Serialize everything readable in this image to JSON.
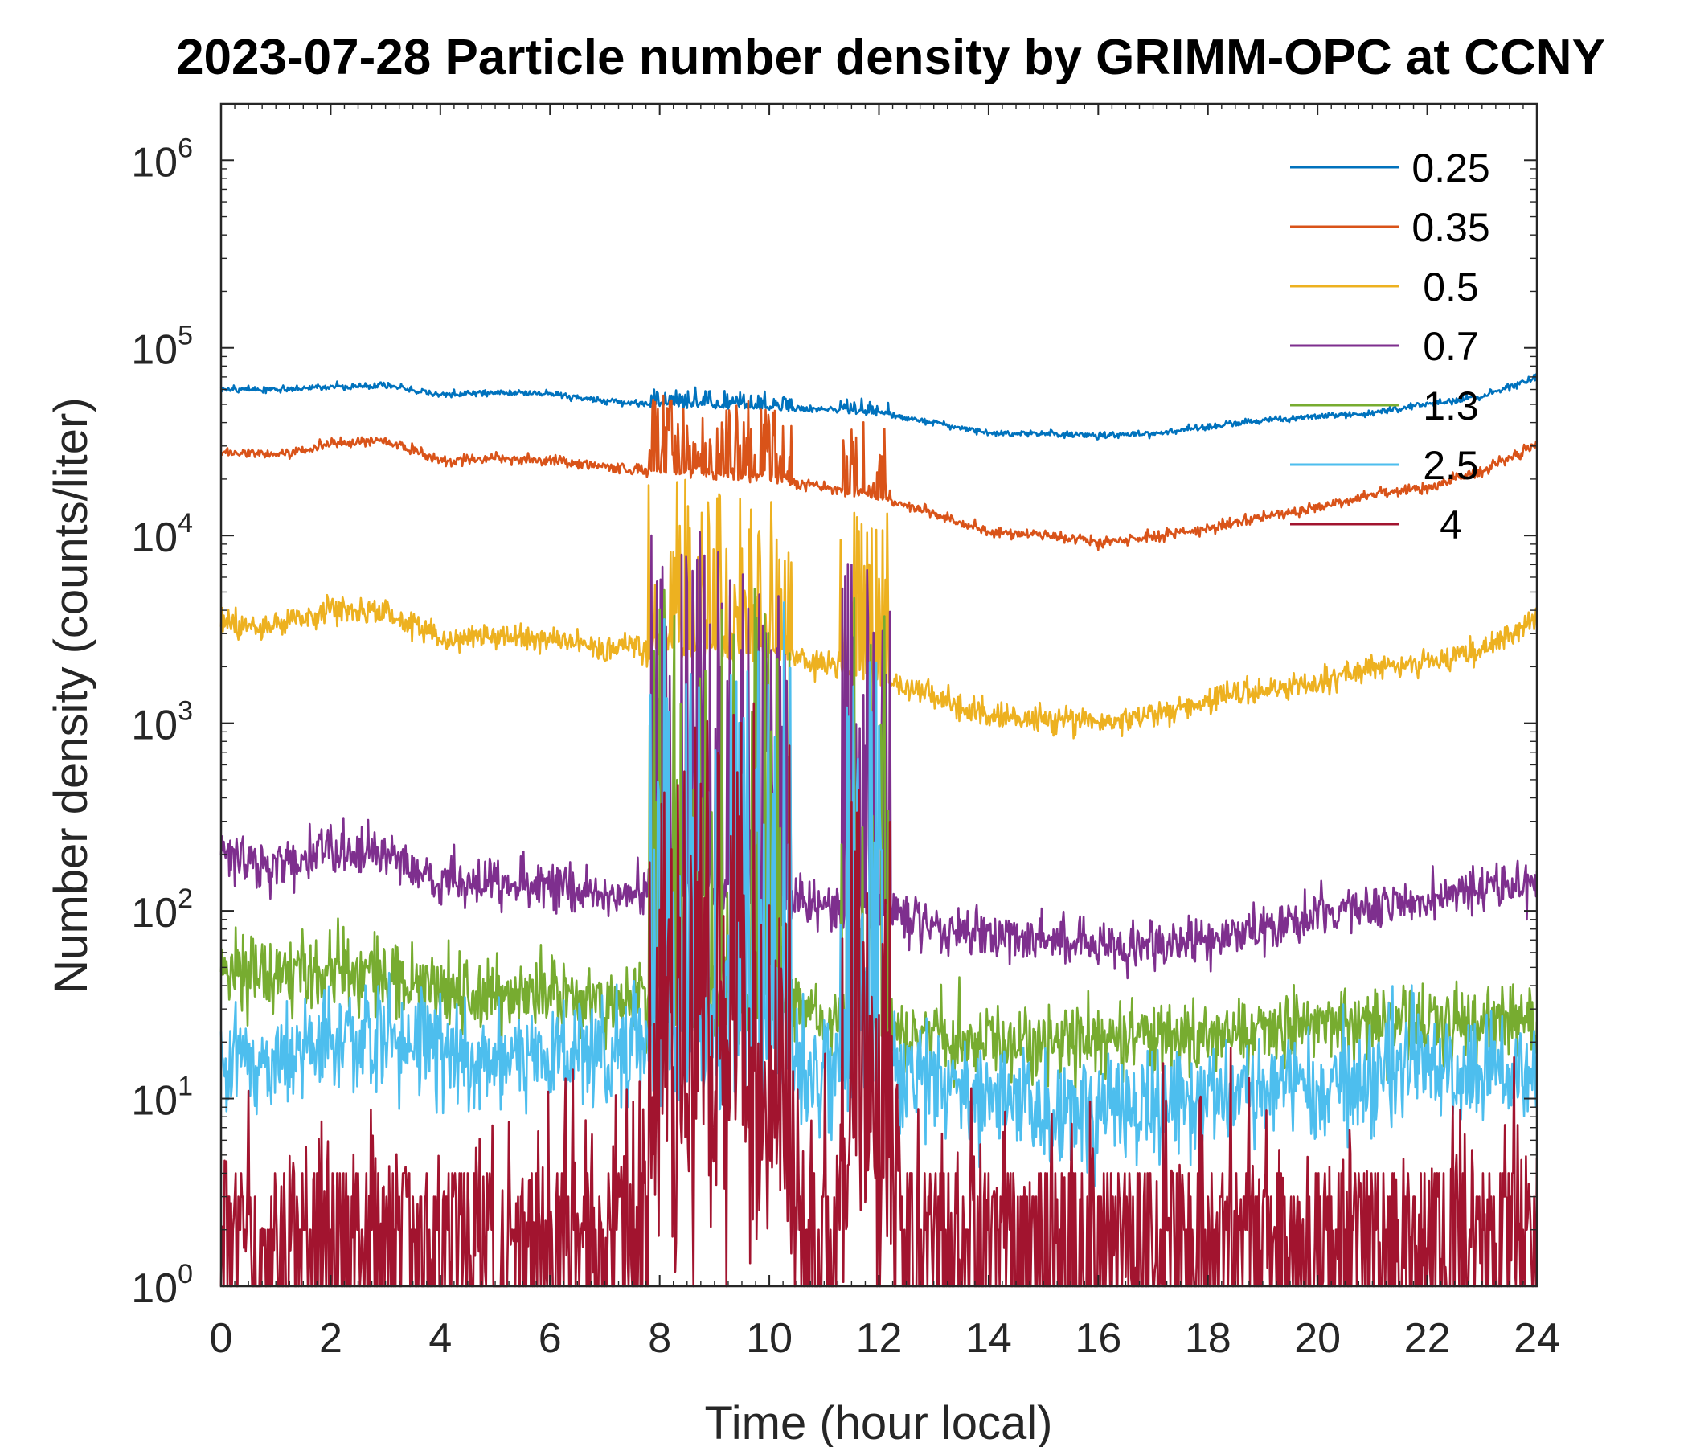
{
  "chart_data": {
    "type": "line",
    "title": "2023-07-28 Particle number density by GRIMM-OPC at CCNY",
    "xlabel": "Time (hour local)",
    "ylabel": "Number density (counts/liter)",
    "xlim": [
      0,
      24
    ],
    "ylim": [
      1,
      2000000
    ],
    "yscale": "log",
    "x_ticks": [
      0,
      2,
      4,
      6,
      8,
      10,
      12,
      14,
      16,
      18,
      20,
      22,
      24
    ],
    "y_ticks": [
      {
        "value": 1,
        "base": "10",
        "exp": "0"
      },
      {
        "value": 10,
        "base": "10",
        "exp": "1"
      },
      {
        "value": 100,
        "base": "10",
        "exp": "2"
      },
      {
        "value": 1000,
        "base": "10",
        "exp": "3"
      },
      {
        "value": 10000,
        "base": "10",
        "exp": "4"
      },
      {
        "value": 100000,
        "base": "10",
        "exp": "5"
      },
      {
        "value": 1000000,
        "base": "10",
        "exp": "6"
      }
    ],
    "legend_position": "top-right",
    "grid": false,
    "series": [
      {
        "name": "0.25",
        "color": "#0072BD",
        "x": [
          0,
          1,
          2,
          3,
          4,
          5,
          6,
          7,
          8,
          9,
          10,
          11,
          12,
          13,
          14,
          15,
          16,
          17,
          18,
          19,
          20,
          21,
          22,
          23,
          24
        ],
        "values": [
          60000,
          60000,
          62000,
          63000,
          56000,
          58000,
          57000,
          52000,
          50000,
          49000,
          48000,
          47000,
          45000,
          40000,
          35000,
          35000,
          34000,
          35000,
          38000,
          41000,
          43000,
          45000,
          50000,
          55000,
          70000
        ]
      },
      {
        "name": "0.35",
        "color": "#D95319",
        "x": [
          0,
          1,
          2,
          3,
          4,
          5,
          6,
          7,
          8,
          9,
          10,
          11,
          12,
          13,
          14,
          15,
          16,
          17,
          18,
          19,
          20,
          21,
          22,
          23,
          24
        ],
        "values": [
          28000,
          27000,
          31000,
          32000,
          25000,
          26000,
          25000,
          23000,
          22000,
          21000,
          20000,
          18000,
          16000,
          13000,
          10500,
          10000,
          9200,
          9800,
          11000,
          12500,
          14000,
          16500,
          18000,
          22000,
          30000
        ]
      },
      {
        "name": "0.5",
        "color": "#EDB120",
        "x": [
          0,
          1,
          2,
          3,
          4,
          5,
          6,
          7,
          8,
          9,
          10,
          11,
          12,
          13,
          14,
          15,
          16,
          17,
          18,
          19,
          20,
          21,
          22,
          23,
          24
        ],
        "values": [
          3500,
          3300,
          4000,
          3900,
          2800,
          3000,
          2800,
          2500,
          2600,
          2500,
          2400,
          2100,
          1700,
          1400,
          1100,
          1050,
          1000,
          1100,
          1300,
          1500,
          1650,
          1950,
          2100,
          2500,
          3500
        ]
      },
      {
        "name": "0.7",
        "color": "#7E2F8E",
        "x": [
          0,
          1,
          2,
          3,
          4,
          5,
          6,
          7,
          8,
          9,
          10,
          11,
          12,
          13,
          14,
          15,
          16,
          17,
          18,
          19,
          20,
          21,
          22,
          23,
          24
        ],
        "values": [
          190,
          180,
          210,
          200,
          140,
          150,
          135,
          125,
          120,
          120,
          110,
          105,
          95,
          80,
          75,
          70,
          65,
          65,
          70,
          80,
          95,
          105,
          115,
          130,
          140
        ]
      },
      {
        "name": "1.3",
        "color": "#77AC30",
        "x": [
          0,
          1,
          2,
          3,
          4,
          5,
          6,
          7,
          8,
          9,
          10,
          11,
          12,
          13,
          14,
          15,
          16,
          17,
          18,
          19,
          20,
          21,
          22,
          23,
          24
        ],
        "values": [
          50,
          48,
          50,
          45,
          40,
          35,
          35,
          33,
          32,
          30,
          30,
          28,
          25,
          22,
          20,
          20,
          20,
          22,
          22,
          22,
          25,
          25,
          25,
          25,
          25
        ]
      },
      {
        "name": "2.5",
        "color": "#4DBEEE",
        "x": [
          0,
          1,
          2,
          3,
          4,
          5,
          6,
          7,
          8,
          9,
          10,
          11,
          12,
          13,
          14,
          15,
          16,
          17,
          18,
          19,
          20,
          21,
          22,
          23,
          24
        ],
        "values": [
          15,
          16,
          20,
          20,
          18,
          16,
          18,
          17,
          20,
          18,
          16,
          15,
          14,
          12,
          10,
          9,
          9,
          10,
          10,
          11,
          12,
          13,
          14,
          15,
          15
        ]
      },
      {
        "name": "4",
        "color": "#A2142F",
        "x": [
          0,
          1,
          2,
          3,
          4,
          5,
          6,
          7,
          8,
          9,
          10,
          11,
          12,
          13,
          14,
          15,
          16,
          17,
          18,
          19,
          20,
          21,
          22,
          23,
          24
        ],
        "values": [
          2.5,
          2.5,
          2.5,
          2.5,
          2.5,
          3,
          3,
          3,
          5,
          8,
          6,
          4,
          4,
          3,
          2,
          2,
          2,
          2,
          2,
          2,
          2,
          2,
          2,
          2.5,
          3
        ]
      }
    ],
    "burst_windows_hours": [
      [
        7.8,
        10.4
      ],
      [
        11.3,
        12.2
      ]
    ],
    "burst_peaks": [
      {
        "x": 8.25,
        "value": 12000
      },
      {
        "x": 11.5,
        "value": 9000
      }
    ]
  }
}
